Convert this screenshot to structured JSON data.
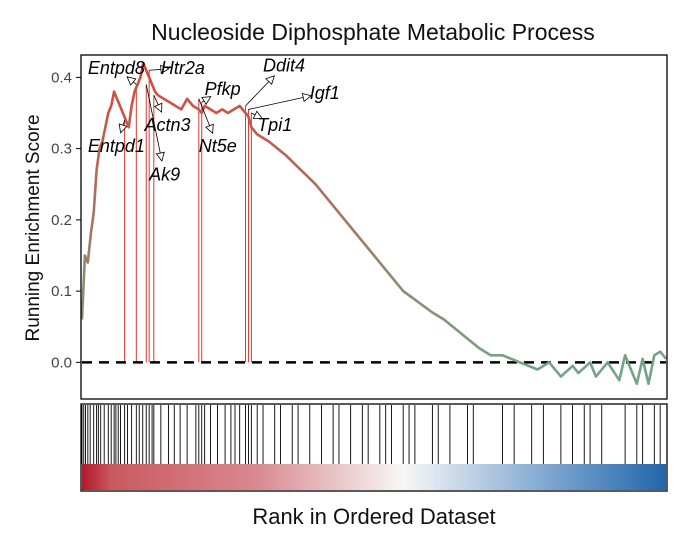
{
  "chart_data": {
    "type": "line",
    "title": "Nucleoside Diphosphate Metabolic Process",
    "xlabel": "Rank in Ordered Dataset",
    "ylabel": "Running Enrichment Score",
    "ylim": [
      -0.05,
      0.43
    ],
    "xlim": [
      0,
      1
    ],
    "yticks": [
      0.0,
      0.1,
      0.2,
      0.3,
      0.4
    ],
    "ytick_labels": [
      "0.0",
      "0.1",
      "0.2",
      "0.3",
      "0.4"
    ],
    "baseline": 0.0,
    "grid": false,
    "legend": "none",
    "colors": {
      "high": "#d9473a",
      "low": "#6ea88a",
      "heat_left": "#b2182b",
      "heat_mid": "#f7f7f7",
      "heat_right": "#2166ac",
      "axis": "#000000"
    },
    "series": [
      {
        "x": [
          0.0,
          0.005,
          0.01,
          0.015,
          0.02,
          0.025,
          0.03,
          0.035,
          0.045,
          0.05,
          0.055,
          0.06,
          0.065,
          0.07,
          0.075,
          0.08,
          0.085,
          0.09,
          0.095,
          0.1,
          0.105,
          0.11,
          0.115,
          0.12,
          0.125,
          0.13,
          0.14,
          0.15,
          0.16,
          0.17,
          0.18,
          0.19,
          0.2,
          0.205,
          0.21,
          0.22,
          0.23,
          0.24,
          0.25,
          0.26,
          0.27,
          0.28,
          0.285,
          0.29,
          0.3,
          0.32,
          0.35,
          0.4,
          0.45,
          0.5,
          0.55,
          0.6,
          0.62,
          0.65,
          0.68,
          0.7,
          0.72,
          0.75,
          0.78,
          0.8,
          0.82,
          0.84,
          0.85,
          0.87,
          0.88,
          0.9,
          0.92,
          0.93,
          0.95,
          0.96,
          0.97,
          0.98,
          0.99,
          1.0
        ],
        "y": [
          0.06,
          0.15,
          0.14,
          0.18,
          0.21,
          0.27,
          0.3,
          0.31,
          0.35,
          0.36,
          0.38,
          0.37,
          0.36,
          0.35,
          0.34,
          0.33,
          0.36,
          0.38,
          0.39,
          0.4,
          0.42,
          0.41,
          0.4,
          0.39,
          0.38,
          0.375,
          0.37,
          0.365,
          0.36,
          0.355,
          0.37,
          0.36,
          0.355,
          0.35,
          0.36,
          0.355,
          0.35,
          0.355,
          0.35,
          0.355,
          0.36,
          0.35,
          0.345,
          0.33,
          0.32,
          0.31,
          0.29,
          0.25,
          0.2,
          0.15,
          0.1,
          0.07,
          0.06,
          0.04,
          0.02,
          0.01,
          0.01,
          0.0,
          -0.01,
          0.0,
          -0.02,
          -0.005,
          -0.015,
          0.0,
          -0.02,
          0.0,
          -0.025,
          0.01,
          -0.03,
          0.005,
          -0.03,
          0.01,
          0.015,
          0.005
        ]
      }
    ],
    "core_genes": [
      {
        "gene": "Entpd8",
        "x": 0.093,
        "y": 0.39
      },
      {
        "gene": "Htr2a",
        "x": 0.115,
        "y": 0.41
      },
      {
        "gene": "Entpd1",
        "x": 0.073,
        "y": 0.34
      },
      {
        "gene": "Ak9",
        "x": 0.11,
        "y": 0.39
      },
      {
        "gene": "Actn3",
        "x": 0.123,
        "y": 0.375
      },
      {
        "gene": "Nt5e",
        "x": 0.2,
        "y": 0.37
      },
      {
        "gene": "Pfkp",
        "x": 0.205,
        "y": 0.365
      },
      {
        "gene": "Ddit4",
        "x": 0.28,
        "y": 0.36
      },
      {
        "gene": "Igf1",
        "x": 0.285,
        "y": 0.355
      },
      {
        "gene": "Tpi1",
        "x": 0.29,
        "y": 0.35
      }
    ],
    "gene_labels": [
      {
        "gene": "Entpd8",
        "lx": 0.01,
        "ly": 0.405
      },
      {
        "gene": "Htr2a",
        "lx": 0.135,
        "ly": 0.405
      },
      {
        "gene": "Entpd1",
        "lx": 0.01,
        "ly": 0.295
      },
      {
        "gene": "Ak9",
        "lx": 0.115,
        "ly": 0.255
      },
      {
        "gene": "Actn3",
        "lx": 0.107,
        "ly": 0.325
      },
      {
        "gene": "Nt5e",
        "lx": 0.2,
        "ly": 0.295
      },
      {
        "gene": "Pfkp",
        "lx": 0.21,
        "ly": 0.375
      },
      {
        "gene": "Ddit4",
        "lx": 0.31,
        "ly": 0.408
      },
      {
        "gene": "Igf1",
        "lx": 0.39,
        "ly": 0.37
      },
      {
        "gene": "Tpi1",
        "lx": 0.3,
        "ly": 0.325
      }
    ],
    "hit_positions": [
      0.0,
      0.003,
      0.006,
      0.01,
      0.014,
      0.02,
      0.025,
      0.028,
      0.032,
      0.038,
      0.045,
      0.05,
      0.055,
      0.058,
      0.062,
      0.066,
      0.073,
      0.078,
      0.085,
      0.093,
      0.098,
      0.104,
      0.11,
      0.115,
      0.12,
      0.123,
      0.135,
      0.148,
      0.158,
      0.168,
      0.18,
      0.195,
      0.2,
      0.205,
      0.21,
      0.22,
      0.232,
      0.245,
      0.255,
      0.262,
      0.27,
      0.28,
      0.285,
      0.29,
      0.3,
      0.31,
      0.33,
      0.34,
      0.36,
      0.37,
      0.39,
      0.41,
      0.43,
      0.44,
      0.46,
      0.48,
      0.49,
      0.51,
      0.52,
      0.53,
      0.55,
      0.56,
      0.57,
      0.6,
      0.61,
      0.63,
      0.66,
      0.67,
      0.72,
      0.74,
      0.77,
      0.79,
      0.82,
      0.84,
      0.86,
      0.87,
      0.89,
      0.93,
      0.95,
      0.96,
      0.98,
      0.99
    ]
  }
}
